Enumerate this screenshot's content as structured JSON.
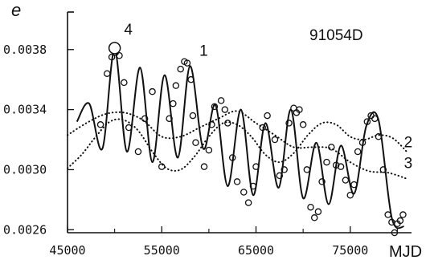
{
  "chart_data": {
    "type": "line",
    "title": "91054D",
    "xlabel": "MJD",
    "ylabel": "e",
    "xlim": [
      45000,
      81500
    ],
    "ylim": [
      0.00258,
      0.00405
    ],
    "x_ticks": [
      "45000",
      "55000",
      "65000",
      "75000"
    ],
    "x_tick_values": [
      45000,
      55000,
      65000,
      75000
    ],
    "x_minor_ticks": [
      50000,
      60000,
      70000,
      80000
    ],
    "y_ticks": [
      "0.0026",
      "0.0030",
      "0.0034",
      "0.0038"
    ],
    "y_tick_values": [
      0.0026,
      0.003,
      0.0034,
      0.0038
    ],
    "grid": false,
    "curve_labels": [
      {
        "text": "1",
        "x": 59000,
        "y": 0.00376
      },
      {
        "text": "2",
        "x": 80700,
        "y": 0.00315
      },
      {
        "text": "3",
        "x": 80700,
        "y": 0.00301
      },
      {
        "text": "4",
        "x": 51000,
        "y": 0.0039
      }
    ],
    "series": [
      {
        "style": "solid",
        "color": "#111111",
        "x": [
          46000,
          47300,
          48700,
          50000,
          51300,
          52700,
          54000,
          55300,
          56700,
          58000,
          59400,
          60700,
          62000,
          63400,
          64700,
          66000,
          67400,
          68700,
          70000,
          71400,
          72700,
          74000,
          75400,
          76700,
          78000,
          79400,
          80700
        ],
        "values": [
          0.00332,
          0.00344,
          0.00314,
          0.0038,
          0.00312,
          0.00368,
          0.00305,
          0.00363,
          0.00308,
          0.00369,
          0.00314,
          0.00343,
          0.00289,
          0.0034,
          0.00283,
          0.00331,
          0.00288,
          0.0034,
          0.00281,
          0.00318,
          0.00277,
          0.00316,
          0.00284,
          0.00329,
          0.00333,
          0.00268,
          0.00262
        ]
      },
      {
        "style": "dotted",
        "color": "#111111",
        "x": [
          45000,
          46500,
          48000,
          49500,
          51000,
          52500,
          54000,
          55500,
          57000,
          58500,
          60000,
          61500,
          63000,
          64500,
          66000,
          67500,
          69000,
          70500,
          72000,
          73500,
          75000,
          76500,
          78000,
          79500,
          81000
        ],
        "values": [
          0.00301,
          0.0031,
          0.00322,
          0.00332,
          0.00333,
          0.00326,
          0.00312,
          0.00301,
          0.003,
          0.00309,
          0.00322,
          0.00331,
          0.0033,
          0.00322,
          0.0031,
          0.00305,
          0.00311,
          0.00323,
          0.00331,
          0.0033,
          0.00322,
          0.0032,
          0.00323,
          0.00321,
          0.00312
        ]
      },
      {
        "style": "dotted",
        "color": "#111111",
        "x": [
          45000,
          47000,
          49000,
          51000,
          53000,
          55000,
          57000,
          59000,
          61000,
          63000,
          65000,
          67000,
          69000,
          71000,
          73000,
          75000,
          77000,
          79000,
          81000
        ],
        "values": [
          0.00323,
          0.00331,
          0.00337,
          0.00338,
          0.00333,
          0.00322,
          0.00322,
          0.00328,
          0.00334,
          0.00339,
          0.00331,
          0.00323,
          0.00315,
          0.00315,
          0.00314,
          0.00305,
          0.00299,
          0.00298,
          0.00294
        ]
      }
    ],
    "observations": {
      "marker": "open-circle",
      "x": [
        48500,
        49200,
        49700,
        50100,
        50500,
        51000,
        51500,
        52500,
        53200,
        54000,
        55000,
        55800,
        56200,
        56500,
        57000,
        57400,
        57700,
        58100,
        58300,
        58600,
        59500,
        60000,
        60300,
        60600,
        61300,
        61700,
        62000,
        62500,
        63000,
        63700,
        64200,
        64700,
        65000,
        65700,
        66200,
        67000,
        67500,
        68000,
        68500,
        69000,
        69300,
        69600,
        70000,
        70400,
        70800,
        71200,
        71600,
        72000,
        72500,
        73000,
        73500,
        74000,
        74500,
        75000,
        75400,
        75800,
        76300,
        76800,
        77200,
        77600,
        78000,
        78500,
        79000,
        79400,
        79700,
        80000,
        80300,
        80600
      ],
      "values": [
        0.0033,
        0.00364,
        0.00375,
        0.00378,
        0.00376,
        0.00358,
        0.00328,
        0.00312,
        0.00334,
        0.00352,
        0.00302,
        0.00334,
        0.00344,
        0.00356,
        0.00367,
        0.00372,
        0.00371,
        0.0036,
        0.00336,
        0.00318,
        0.00302,
        0.00313,
        0.0033,
        0.00342,
        0.00346,
        0.0034,
        0.00331,
        0.00308,
        0.00292,
        0.00285,
        0.00278,
        0.00289,
        0.00302,
        0.00328,
        0.00336,
        0.0032,
        0.00296,
        0.003,
        0.00331,
        0.00341,
        0.00338,
        0.0034,
        0.0033,
        0.003,
        0.00275,
        0.00268,
        0.00272,
        0.00292,
        0.00305,
        0.00315,
        0.00303,
        0.00302,
        0.00293,
        0.00283,
        0.0029,
        0.00312,
        0.00318,
        0.00332,
        0.00336,
        0.00334,
        0.00322,
        0.003,
        0.0027,
        0.00265,
        0.00258,
        0.00264,
        0.00266,
        0.0027
      ]
    }
  }
}
